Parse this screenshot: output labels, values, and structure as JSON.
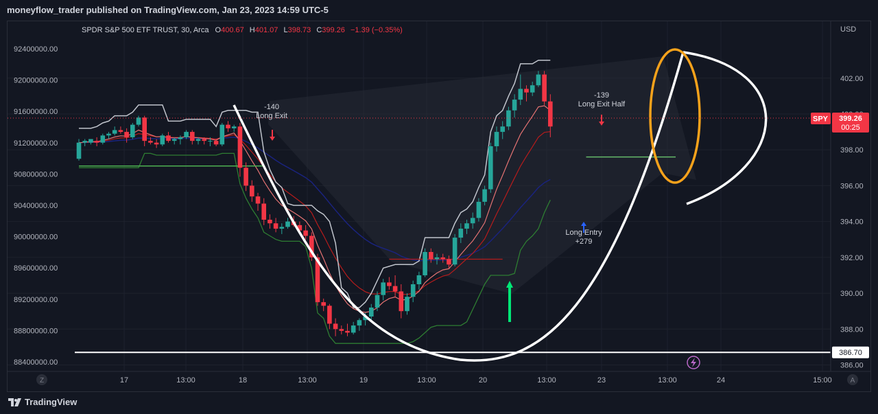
{
  "header": {
    "published": "moneyflow_trader published on TradingView.com, Jan 23, 2023 14:59 UTC-5"
  },
  "footer": {
    "brand": "TradingView"
  },
  "legend": {
    "symbol": "SPDR S&P 500 ETF TRUST, 30, Arca",
    "o_label": "O",
    "o": "400.67",
    "h_label": "H",
    "h": "401.07",
    "l_label": "L",
    "l": "398.73",
    "c_label": "C",
    "c": "399.26",
    "change": "−1.39 (−0.35%)"
  },
  "price_scale": {
    "currency": "USD",
    "ticks": [
      "402.00",
      "400.00",
      "398.00",
      "396.00",
      "394.00",
      "392.00",
      "390.00",
      "388.00",
      "386.00"
    ]
  },
  "badges": {
    "symbol": "SPY",
    "price": "399.26",
    "countdown": "00:25",
    "level": "386.70"
  },
  "colors": {
    "up": "#26a69a",
    "down": "#f23645",
    "bg": "#131722",
    "grid": "#1e222d",
    "text": "#b2b5be"
  },
  "chart_data": {
    "type": "candlestick",
    "symbol": "SPY",
    "interval": "30",
    "right_axis": {
      "ylim": [
        386.0,
        403.6
      ],
      "ticks": [
        402,
        400,
        398,
        396,
        394,
        392,
        390,
        388,
        386
      ]
    },
    "left_axis": {
      "labels": [
        "92400000.00",
        "92000000.00",
        "91600000.00",
        "91200000.00",
        "90800000.00",
        "90400000.00",
        "90000000.00",
        "89600000.00",
        "89200000.00",
        "88800000.00",
        "88400000.00"
      ]
    },
    "x_labels": [
      "17",
      "13:00",
      "18",
      "13:00",
      "19",
      "13:00",
      "20",
      "13:00",
      "23",
      "13:00",
      "24",
      "15:00"
    ],
    "ohlc": [
      [
        397.5,
        398.6,
        397.4,
        398.4
      ],
      [
        398.4,
        398.6,
        398.2,
        398.5
      ],
      [
        398.4,
        398.6,
        398.3,
        398.6
      ],
      [
        398.5,
        398.7,
        398.2,
        398.4
      ],
      [
        398.4,
        398.9,
        398.3,
        398.8
      ],
      [
        398.8,
        399.0,
        398.6,
        398.9
      ],
      [
        398.9,
        399.3,
        398.8,
        399.1
      ],
      [
        399.1,
        399.3,
        398.9,
        399.0
      ],
      [
        399.0,
        399.2,
        398.4,
        398.7
      ],
      [
        398.7,
        399.5,
        398.6,
        399.4
      ],
      [
        399.4,
        399.9,
        399.3,
        399.8
      ],
      [
        399.8,
        399.9,
        398.2,
        398.5
      ],
      [
        398.5,
        398.7,
        398.3,
        398.4
      ],
      [
        398.4,
        398.6,
        398.1,
        398.3
      ],
      [
        398.3,
        398.9,
        398.2,
        398.8
      ],
      [
        398.8,
        399.0,
        398.4,
        398.5
      ],
      [
        398.5,
        398.7,
        398.3,
        398.6
      ],
      [
        398.6,
        398.8,
        398.3,
        398.7
      ],
      [
        398.7,
        399.1,
        398.6,
        399.0
      ],
      [
        399.0,
        399.1,
        398.3,
        398.5
      ],
      [
        398.5,
        398.7,
        398.3,
        398.6
      ],
      [
        398.6,
        398.7,
        398.3,
        398.5
      ],
      [
        398.5,
        398.7,
        398.2,
        398.5
      ],
      [
        398.5,
        398.6,
        398.2,
        398.3
      ],
      [
        398.3,
        399.5,
        398.2,
        399.4
      ],
      [
        399.4,
        399.6,
        399.0,
        399.2
      ],
      [
        399.2,
        399.4,
        399.0,
        399.3
      ],
      [
        399.3,
        399.5,
        396.5,
        397.0
      ],
      [
        397.0,
        397.3,
        395.7,
        396.0
      ],
      [
        396.0,
        396.3,
        395.1,
        395.4
      ],
      [
        395.4,
        395.6,
        394.6,
        395.0
      ],
      [
        395.0,
        395.3,
        393.8,
        394.1
      ],
      [
        394.1,
        394.4,
        393.6,
        393.9
      ],
      [
        393.9,
        394.2,
        393.4,
        393.6
      ],
      [
        393.6,
        393.9,
        393.3,
        393.7
      ],
      [
        393.7,
        394.2,
        393.6,
        394.0
      ],
      [
        394.0,
        394.3,
        393.7,
        393.8
      ],
      [
        393.8,
        394.0,
        393.3,
        393.5
      ],
      [
        393.5,
        393.8,
        393.0,
        393.2
      ],
      [
        393.2,
        393.4,
        391.8,
        392.0
      ],
      [
        392.0,
        392.2,
        389.3,
        389.5
      ],
      [
        389.5,
        389.7,
        389.0,
        389.3
      ],
      [
        389.3,
        389.4,
        388.0,
        388.3
      ],
      [
        388.3,
        388.6,
        387.6,
        388.0
      ],
      [
        388.0,
        388.2,
        387.7,
        387.9
      ],
      [
        387.9,
        388.3,
        387.6,
        387.8
      ],
      [
        387.8,
        388.4,
        387.7,
        388.2
      ],
      [
        388.2,
        388.6,
        387.9,
        388.5
      ],
      [
        388.5,
        388.9,
        388.2,
        388.7
      ],
      [
        388.7,
        389.4,
        388.5,
        389.2
      ],
      [
        389.2,
        390.1,
        389.0,
        389.9
      ],
      [
        389.9,
        390.8,
        389.6,
        390.6
      ],
      [
        390.6,
        390.9,
        390.2,
        390.4
      ],
      [
        390.4,
        391.0,
        389.8,
        390.1
      ],
      [
        390.1,
        390.5,
        388.6,
        389.0
      ],
      [
        389.0,
        390.0,
        388.8,
        389.8
      ],
      [
        389.8,
        390.7,
        389.5,
        390.5
      ],
      [
        390.5,
        391.2,
        390.2,
        391.0
      ],
      [
        391.0,
        392.5,
        390.9,
        392.3
      ],
      [
        392.3,
        392.5,
        391.7,
        391.9
      ],
      [
        391.9,
        392.2,
        391.6,
        392.0
      ],
      [
        392.0,
        392.2,
        391.7,
        391.9
      ],
      [
        391.9,
        392.1,
        391.4,
        391.6
      ],
      [
        391.6,
        393.3,
        391.5,
        393.1
      ],
      [
        393.1,
        393.9,
        392.8,
        393.6
      ],
      [
        393.6,
        394.1,
        393.3,
        393.9
      ],
      [
        393.9,
        394.5,
        393.6,
        394.2
      ],
      [
        394.2,
        395.3,
        394.0,
        395.1
      ],
      [
        395.1,
        396.0,
        394.9,
        395.8
      ],
      [
        395.8,
        398.4,
        395.6,
        398.2
      ],
      [
        398.2,
        399.3,
        397.9,
        399.0
      ],
      [
        399.0,
        399.6,
        398.6,
        399.3
      ],
      [
        399.3,
        400.4,
        399.1,
        400.2
      ],
      [
        400.2,
        401.1,
        399.8,
        400.8
      ],
      [
        400.8,
        402.2,
        400.5,
        401.4
      ],
      [
        401.4,
        401.6,
        400.7,
        401.2
      ],
      [
        401.2,
        401.8,
        401.0,
        401.6
      ],
      [
        401.6,
        402.4,
        401.5,
        402.2
      ],
      [
        402.2,
        402.4,
        400.5,
        400.7
      ],
      [
        400.7,
        401.1,
        398.7,
        399.3
      ]
    ],
    "signals": [
      {
        "text": "-140",
        "text2": "Long Exit"
      },
      {
        "text": "-139",
        "text2": "Long Exit Half"
      },
      {
        "text": "Long Entry",
        "text2": "+279"
      }
    ],
    "horizontal_lines": [
      {
        "value": 386.7,
        "label": "386.70"
      }
    ]
  }
}
